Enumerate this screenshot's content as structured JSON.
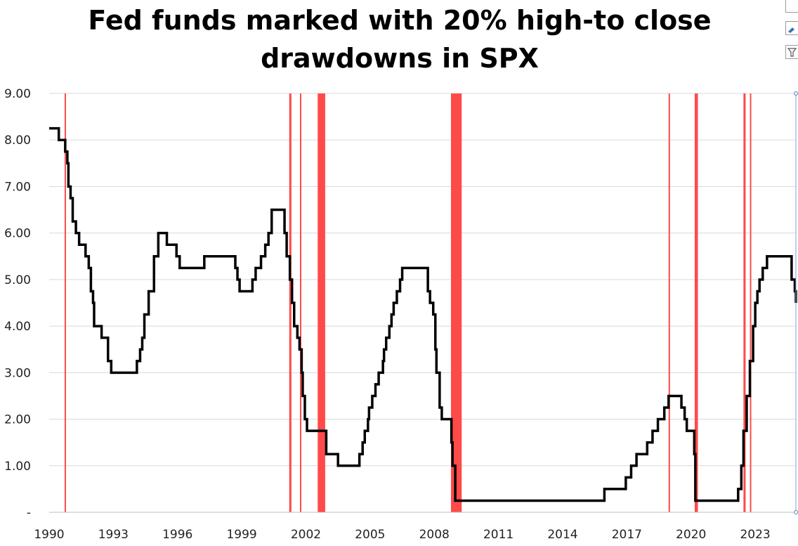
{
  "chart_data": {
    "type": "line",
    "title_lines": [
      "Fed funds marked with 20% high-to close",
      "drawdowns in SPX"
    ],
    "xlabel": "",
    "ylabel": "",
    "xlim": [
      1990,
      2024.9
    ],
    "ylim": [
      0,
      9
    ],
    "x_ticks": [
      "1990",
      "1993",
      "1996",
      "1999",
      "2002",
      "2005",
      "2008",
      "2011",
      "2014",
      "2017",
      "2020",
      "2023"
    ],
    "y_ticks": [
      "-",
      "1.00",
      "2.00",
      "3.00",
      "4.00",
      "5.00",
      "6.00",
      "7.00",
      "8.00",
      "9.00"
    ],
    "grid": "horizontal",
    "line_color": "#000000",
    "drawdown_color": "#ff4a4a",
    "series": [
      {
        "step": true,
        "points": [
          [
            1990.0,
            8.25
          ],
          [
            1990.45,
            8.0
          ],
          [
            1990.75,
            7.75
          ],
          [
            1990.85,
            7.5
          ],
          [
            1990.9,
            7.0
          ],
          [
            1991.0,
            6.75
          ],
          [
            1991.1,
            6.25
          ],
          [
            1991.25,
            6.0
          ],
          [
            1991.4,
            5.75
          ],
          [
            1991.7,
            5.5
          ],
          [
            1991.85,
            5.25
          ],
          [
            1991.95,
            4.75
          ],
          [
            1992.05,
            4.5
          ],
          [
            1992.1,
            4.0
          ],
          [
            1992.45,
            3.75
          ],
          [
            1992.75,
            3.25
          ],
          [
            1992.9,
            3.0
          ],
          [
            1994.1,
            3.25
          ],
          [
            1994.25,
            3.5
          ],
          [
            1994.35,
            3.75
          ],
          [
            1994.45,
            4.25
          ],
          [
            1994.65,
            4.75
          ],
          [
            1994.9,
            5.5
          ],
          [
            1995.1,
            6.0
          ],
          [
            1995.5,
            5.75
          ],
          [
            1995.95,
            5.5
          ],
          [
            1996.1,
            5.25
          ],
          [
            1997.25,
            5.5
          ],
          [
            1998.7,
            5.25
          ],
          [
            1998.8,
            5.0
          ],
          [
            1998.9,
            4.75
          ],
          [
            1999.5,
            5.0
          ],
          [
            1999.65,
            5.25
          ],
          [
            1999.9,
            5.5
          ],
          [
            2000.1,
            5.75
          ],
          [
            2000.25,
            6.0
          ],
          [
            2000.4,
            6.5
          ],
          [
            2001.0,
            6.0
          ],
          [
            2001.1,
            5.5
          ],
          [
            2001.25,
            5.0
          ],
          [
            2001.35,
            4.5
          ],
          [
            2001.45,
            4.0
          ],
          [
            2001.6,
            3.75
          ],
          [
            2001.7,
            3.5
          ],
          [
            2001.8,
            3.0
          ],
          [
            2001.85,
            2.5
          ],
          [
            2001.95,
            2.0
          ],
          [
            2002.05,
            1.75
          ],
          [
            2002.95,
            1.25
          ],
          [
            2003.5,
            1.0
          ],
          [
            2004.5,
            1.25
          ],
          [
            2004.65,
            1.5
          ],
          [
            2004.75,
            1.75
          ],
          [
            2004.9,
            2.0
          ],
          [
            2004.95,
            2.25
          ],
          [
            2005.1,
            2.5
          ],
          [
            2005.25,
            2.75
          ],
          [
            2005.4,
            3.0
          ],
          [
            2005.6,
            3.25
          ],
          [
            2005.65,
            3.5
          ],
          [
            2005.75,
            3.75
          ],
          [
            2005.9,
            4.0
          ],
          [
            2006.0,
            4.25
          ],
          [
            2006.1,
            4.5
          ],
          [
            2006.25,
            4.75
          ],
          [
            2006.4,
            5.0
          ],
          [
            2006.5,
            5.25
          ],
          [
            2007.7,
            4.75
          ],
          [
            2007.8,
            4.5
          ],
          [
            2007.95,
            4.25
          ],
          [
            2008.05,
            3.5
          ],
          [
            2008.1,
            3.0
          ],
          [
            2008.25,
            2.25
          ],
          [
            2008.35,
            2.0
          ],
          [
            2008.8,
            1.5
          ],
          [
            2008.85,
            1.0
          ],
          [
            2008.98,
            0.25
          ],
          [
            2015.95,
            0.5
          ],
          [
            2016.95,
            0.75
          ],
          [
            2017.2,
            1.0
          ],
          [
            2017.45,
            1.25
          ],
          [
            2017.95,
            1.5
          ],
          [
            2018.2,
            1.75
          ],
          [
            2018.45,
            2.0
          ],
          [
            2018.75,
            2.25
          ],
          [
            2018.95,
            2.5
          ],
          [
            2019.55,
            2.25
          ],
          [
            2019.7,
            2.0
          ],
          [
            2019.8,
            1.75
          ],
          [
            2020.15,
            1.25
          ],
          [
            2020.2,
            0.25
          ],
          [
            2022.2,
            0.5
          ],
          [
            2022.35,
            1.0
          ],
          [
            2022.45,
            1.75
          ],
          [
            2022.6,
            2.5
          ],
          [
            2022.75,
            3.25
          ],
          [
            2022.9,
            4.0
          ],
          [
            2023.0,
            4.5
          ],
          [
            2023.1,
            4.75
          ],
          [
            2023.2,
            5.0
          ],
          [
            2023.35,
            5.25
          ],
          [
            2023.55,
            5.5
          ],
          [
            2024.7,
            5.0
          ],
          [
            2024.85,
            4.75
          ],
          [
            2024.95,
            4.5
          ],
          [
            2025.2,
            4.5
          ]
        ]
      }
    ],
    "drawdown_periods": [
      [
        1990.72,
        1990.78
      ],
      [
        2001.22,
        2001.32
      ],
      [
        2001.72,
        2001.78
      ],
      [
        2002.55,
        2002.9
      ],
      [
        2008.78,
        2009.28
      ],
      [
        2018.95,
        2019.0
      ],
      [
        2020.17,
        2020.32
      ],
      [
        2022.45,
        2022.55
      ],
      [
        2022.75,
        2022.8
      ]
    ]
  }
}
